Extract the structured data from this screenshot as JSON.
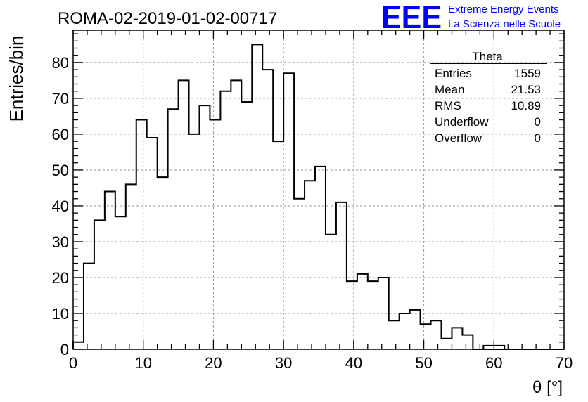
{
  "branding": {
    "logo_text": "EEE",
    "line1": "Extreme Energy Events",
    "line2": "La Scienza nelle Scuole",
    "color": "#0000ff"
  },
  "chart_data": {
    "type": "bar",
    "style": "step-histogram",
    "title": "ROMA-02-2019-01-02-00717",
    "xlabel": "θ [°]",
    "ylabel": "Entries/bin",
    "xlim": [
      0,
      70
    ],
    "ylim": [
      0,
      89
    ],
    "x_ticks": [
      0,
      10,
      20,
      30,
      40,
      50,
      60,
      70
    ],
    "y_ticks": [
      0,
      10,
      20,
      30,
      40,
      50,
      60,
      70,
      80
    ],
    "grid": true,
    "bin_width": 1.5,
    "bin_start": 0,
    "values": [
      2,
      24,
      36,
      44,
      37,
      46,
      64,
      59,
      48,
      67,
      75,
      60,
      68,
      64,
      72,
      75,
      69,
      85,
      78,
      58,
      77,
      42,
      47,
      51,
      32,
      41,
      19,
      21,
      19,
      20,
      8,
      10,
      11,
      7,
      8,
      3,
      6,
      4,
      0,
      0,
      0,
      0,
      0,
      0,
      0,
      0,
      0,
      0,
      0,
      0,
      0,
      0,
      0,
      0,
      0,
      0,
      0,
      0,
      0,
      0,
      0,
      0,
      0,
      0,
      0,
      0,
      0,
      0,
      0,
      0
    ],
    "overflow_tail": {
      "x_from": 58.5,
      "x_to": 61.5,
      "value": 1
    },
    "line_color": "#000000",
    "stats_box": {
      "title": "Theta",
      "rows": [
        {
          "label": "Entries",
          "value": "1559"
        },
        {
          "label": "Mean",
          "value": "21.53"
        },
        {
          "label": "RMS",
          "value": "10.89"
        },
        {
          "label": "Underflow",
          "value": "0"
        },
        {
          "label": "Overflow",
          "value": "0"
        }
      ]
    }
  }
}
